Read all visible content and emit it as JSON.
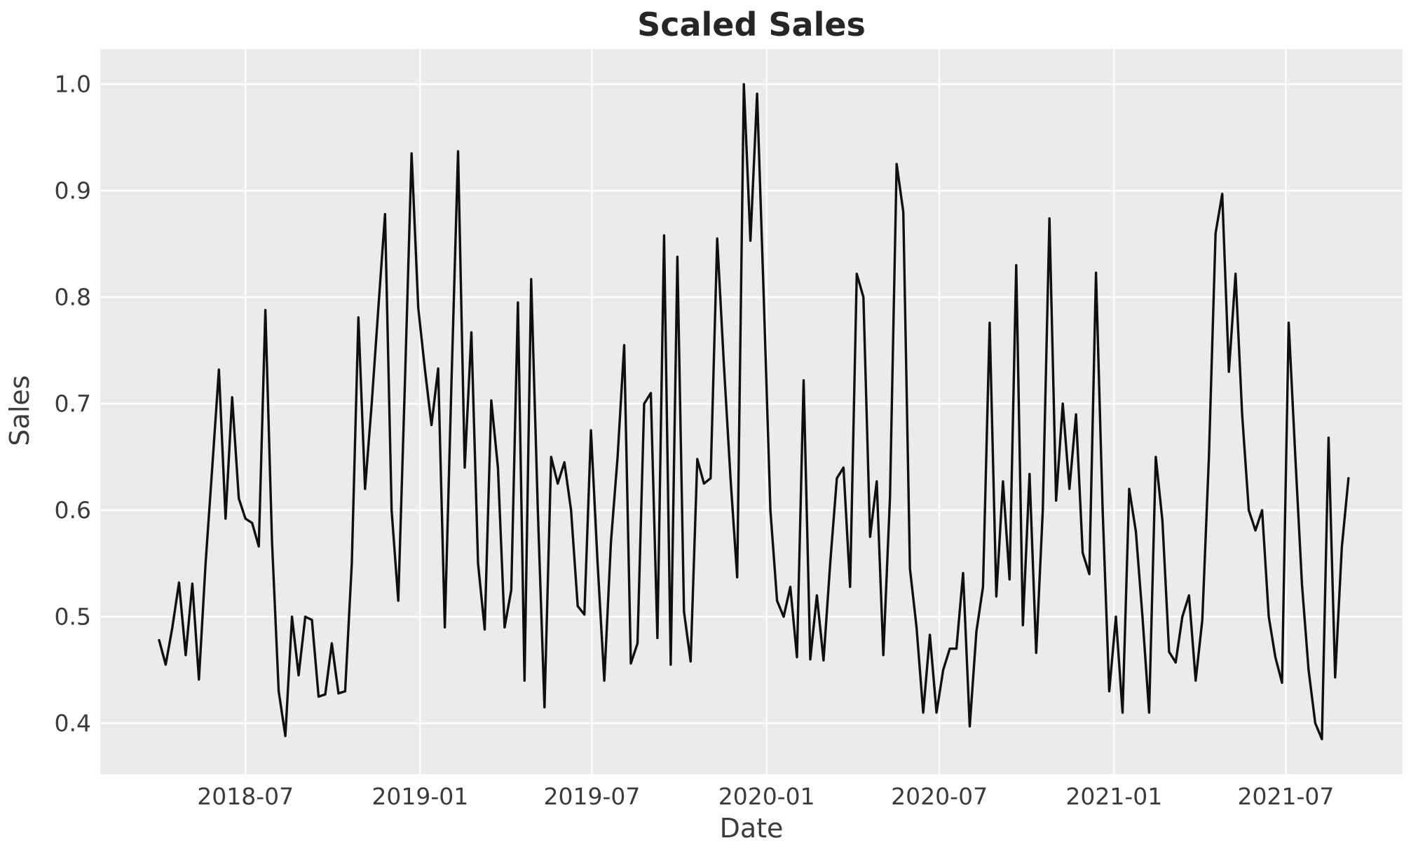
{
  "chart_data": {
    "type": "line",
    "title": "Scaled Sales",
    "xlabel": "Date",
    "ylabel": "Sales",
    "grid": true,
    "legend_position": "none",
    "x_tick_labels": [
      "2018-07",
      "2019-01",
      "2019-07",
      "2020-01",
      "2020-07",
      "2021-01",
      "2021-07"
    ],
    "x_tick_dates": [
      "2018-07-01",
      "2019-01-01",
      "2019-07-01",
      "2020-01-01",
      "2020-07-01",
      "2021-01-01",
      "2021-07-01"
    ],
    "y_tick_values": [
      1.0,
      0.9,
      0.8,
      0.7,
      0.6,
      0.5,
      0.4
    ],
    "y_tick_labels": [
      "1.0",
      "0.9",
      "0.8",
      "0.7",
      "0.6",
      "0.5",
      "0.4"
    ],
    "xlim": [
      "2018-01-29",
      "2021-11-01"
    ],
    "ylim": [
      0.352,
      1.033
    ],
    "colors": {
      "plot_background": "#ebebeb",
      "gridline": "#ffffff",
      "line": "#0f0f0f",
      "title_text": "#262626",
      "axis_text": "#3b3b3b"
    },
    "series": [
      {
        "name": "Sales",
        "dates": [
          "2018-04-01",
          "2018-04-08",
          "2018-04-15",
          "2018-04-22",
          "2018-04-29",
          "2018-05-06",
          "2018-05-13",
          "2018-05-20",
          "2018-05-27",
          "2018-06-03",
          "2018-06-10",
          "2018-06-17",
          "2018-06-24",
          "2018-07-01",
          "2018-07-08",
          "2018-07-15",
          "2018-07-22",
          "2018-07-29",
          "2018-08-05",
          "2018-08-12",
          "2018-08-19",
          "2018-08-26",
          "2018-09-02",
          "2018-09-09",
          "2018-09-16",
          "2018-09-23",
          "2018-09-30",
          "2018-10-07",
          "2018-10-14",
          "2018-10-21",
          "2018-10-28",
          "2018-11-04",
          "2018-11-11",
          "2018-11-18",
          "2018-11-25",
          "2018-12-02",
          "2018-12-09",
          "2018-12-16",
          "2018-12-23",
          "2018-12-30",
          "2019-01-06",
          "2019-01-13",
          "2019-01-20",
          "2019-01-27",
          "2019-02-03",
          "2019-02-10",
          "2019-02-17",
          "2019-02-24",
          "2019-03-03",
          "2019-03-10",
          "2019-03-17",
          "2019-03-24",
          "2019-03-31",
          "2019-04-07",
          "2019-04-14",
          "2019-04-21",
          "2019-04-28",
          "2019-05-05",
          "2019-05-12",
          "2019-05-19",
          "2019-05-26",
          "2019-06-02",
          "2019-06-09",
          "2019-06-16",
          "2019-06-23",
          "2019-06-30",
          "2019-07-07",
          "2019-07-14",
          "2019-07-21",
          "2019-07-28",
          "2019-08-04",
          "2019-08-11",
          "2019-08-18",
          "2019-08-25",
          "2019-09-01",
          "2019-09-08",
          "2019-09-15",
          "2019-09-22",
          "2019-09-29",
          "2019-10-06",
          "2019-10-13",
          "2019-10-20",
          "2019-10-27",
          "2019-11-03",
          "2019-11-10",
          "2019-11-17",
          "2019-11-24",
          "2019-12-01",
          "2019-12-08",
          "2019-12-15",
          "2019-12-22",
          "2019-12-29",
          "2020-01-05",
          "2020-01-12",
          "2020-01-19",
          "2020-01-26",
          "2020-02-02",
          "2020-02-09",
          "2020-02-16",
          "2020-02-23",
          "2020-03-01",
          "2020-03-08",
          "2020-03-15",
          "2020-03-22",
          "2020-03-29",
          "2020-04-05",
          "2020-04-12",
          "2020-04-19",
          "2020-04-26",
          "2020-05-03",
          "2020-05-10",
          "2020-05-17",
          "2020-05-24",
          "2020-05-31",
          "2020-06-07",
          "2020-06-14",
          "2020-06-21",
          "2020-06-28",
          "2020-07-05",
          "2020-07-12",
          "2020-07-19",
          "2020-07-26",
          "2020-08-02",
          "2020-08-09",
          "2020-08-16",
          "2020-08-23",
          "2020-08-30",
          "2020-09-06",
          "2020-09-13",
          "2020-09-20",
          "2020-09-27",
          "2020-10-04",
          "2020-10-11",
          "2020-10-18",
          "2020-10-25",
          "2020-11-01",
          "2020-11-08",
          "2020-11-15",
          "2020-11-22",
          "2020-11-29",
          "2020-12-06",
          "2020-12-13",
          "2020-12-20",
          "2020-12-27",
          "2021-01-03",
          "2021-01-10",
          "2021-01-17",
          "2021-01-24",
          "2021-01-31",
          "2021-02-07",
          "2021-02-14",
          "2021-02-21",
          "2021-02-28",
          "2021-03-07",
          "2021-03-14",
          "2021-03-21",
          "2021-03-28",
          "2021-04-04",
          "2021-04-11",
          "2021-04-18",
          "2021-04-25",
          "2021-05-02",
          "2021-05-09",
          "2021-05-16",
          "2021-05-23",
          "2021-05-30",
          "2021-06-06",
          "2021-06-13",
          "2021-06-20",
          "2021-06-27",
          "2021-07-04",
          "2021-07-11",
          "2021-07-18",
          "2021-07-25",
          "2021-08-01",
          "2021-08-08",
          "2021-08-15",
          "2021-08-22",
          "2021-08-29",
          "2021-09-05"
        ],
        "values": [
          0.478,
          0.455,
          0.49,
          0.532,
          0.464,
          0.531,
          0.441,
          0.55,
          0.64,
          0.732,
          0.592,
          0.706,
          0.611,
          0.592,
          0.588,
          0.566,
          0.788,
          0.57,
          0.43,
          0.388,
          0.5,
          0.445,
          0.5,
          0.497,
          0.425,
          0.427,
          0.475,
          0.428,
          0.43,
          0.55,
          0.781,
          0.62,
          0.7,
          0.79,
          0.878,
          0.6,
          0.515,
          0.72,
          0.935,
          0.79,
          0.733,
          0.68,
          0.733,
          0.49,
          0.72,
          0.937,
          0.64,
          0.767,
          0.55,
          0.488,
          0.703,
          0.64,
          0.49,
          0.525,
          0.795,
          0.44,
          0.817,
          0.6,
          0.415,
          0.65,
          0.625,
          0.645,
          0.6,
          0.51,
          0.502,
          0.675,
          0.55,
          0.44,
          0.57,
          0.65,
          0.755,
          0.456,
          0.475,
          0.7,
          0.71,
          0.48,
          0.858,
          0.455,
          0.838,
          0.505,
          0.458,
          0.648,
          0.625,
          0.63,
          0.855,
          0.737,
          0.63,
          0.537,
          1.0,
          0.853,
          0.991,
          0.8,
          0.6,
          0.515,
          0.5,
          0.528,
          0.462,
          0.722,
          0.46,
          0.52,
          0.459,
          0.55,
          0.63,
          0.64,
          0.528,
          0.822,
          0.8,
          0.575,
          0.627,
          0.464,
          0.612,
          0.925,
          0.88,
          0.545,
          0.49,
          0.41,
          0.483,
          0.41,
          0.45,
          0.47,
          0.47,
          0.541,
          0.397,
          0.486,
          0.528,
          0.776,
          0.519,
          0.627,
          0.535,
          0.83,
          0.492,
          0.634,
          0.466,
          0.6,
          0.874,
          0.609,
          0.7,
          0.62,
          0.69,
          0.56,
          0.54,
          0.823,
          0.6,
          0.43,
          0.5,
          0.41,
          0.62,
          0.58,
          0.5,
          0.41,
          0.65,
          0.59,
          0.467,
          0.457,
          0.5,
          0.52,
          0.44,
          0.497,
          0.65,
          0.86,
          0.897,
          0.73,
          0.822,
          0.69,
          0.6,
          0.581,
          0.6,
          0.5,
          0.462,
          0.438,
          0.776,
          0.65,
          0.53,
          0.45,
          0.4,
          0.385,
          0.668,
          0.443,
          0.565,
          0.63
        ]
      }
    ]
  }
}
